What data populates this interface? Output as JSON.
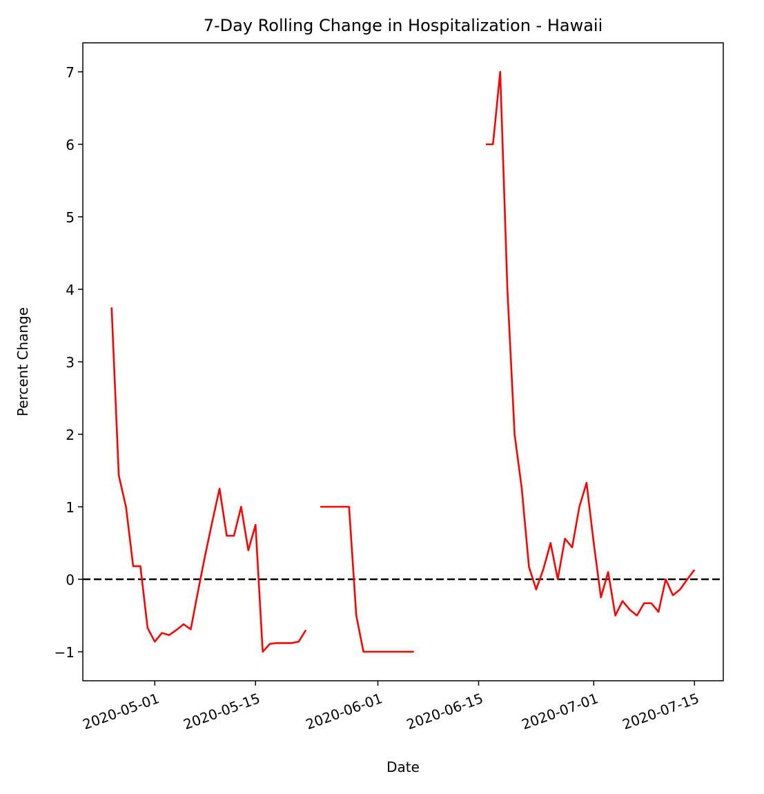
{
  "chart_data": {
    "type": "line",
    "title": "7-Day Rolling Change in Hospitalization - Hawaii",
    "xlabel": "Date",
    "ylabel": "Percent Change",
    "xlim": [
      "2020-04-21",
      "2020-07-19"
    ],
    "ylim": [
      -1.4,
      7.4
    ],
    "x_ticks": [
      "2020-05-01",
      "2020-05-15",
      "2020-06-01",
      "2020-06-15",
      "2020-07-01",
      "2020-07-15"
    ],
    "y_ticks": [
      -1,
      0,
      1,
      2,
      3,
      4,
      5,
      6,
      7
    ],
    "y_tick_labels": [
      "−1",
      "0",
      "1",
      "2",
      "3",
      "4",
      "5",
      "6",
      "7"
    ],
    "grid": false,
    "reference_line": {
      "y": 0,
      "style": "dashed",
      "color": "#000000"
    },
    "series": [
      {
        "color": "#ff0000",
        "segments": [
          [
            [
              "2020-04-25",
              3.75
            ],
            [
              "2020-04-26",
              1.43
            ],
            [
              "2020-04-27",
              1.0
            ],
            [
              "2020-04-28",
              0.18
            ],
            [
              "2020-04-29",
              0.18
            ],
            [
              "2020-04-30",
              -0.67
            ],
            [
              "2020-05-01",
              -0.86
            ],
            [
              "2020-05-02",
              -0.74
            ],
            [
              "2020-05-03",
              -0.77
            ],
            [
              "2020-05-04",
              -0.7
            ],
            [
              "2020-05-05",
              -0.62
            ],
            [
              "2020-05-06",
              -0.69
            ],
            [
              "2020-05-07",
              -0.17
            ],
            [
              "2020-05-08",
              0.33
            ],
            [
              "2020-05-09",
              0.8
            ],
            [
              "2020-05-10",
              1.25
            ],
            [
              "2020-05-11",
              0.6
            ],
            [
              "2020-05-12",
              0.6
            ],
            [
              "2020-05-13",
              1.0
            ],
            [
              "2020-05-14",
              0.4
            ],
            [
              "2020-05-15",
              0.75
            ],
            [
              "2020-05-16",
              -1.0
            ],
            [
              "2020-05-17",
              -0.89
            ],
            [
              "2020-05-18",
              -0.88
            ],
            [
              "2020-05-19",
              -0.88
            ],
            [
              "2020-05-20",
              -0.88
            ],
            [
              "2020-05-21",
              -0.86
            ],
            [
              "2020-05-22",
              -0.7
            ]
          ],
          [
            [
              "2020-05-24",
              1.0
            ],
            [
              "2020-05-25",
              1.0
            ],
            [
              "2020-05-26",
              1.0
            ],
            [
              "2020-05-27",
              1.0
            ],
            [
              "2020-05-28",
              1.0
            ],
            [
              "2020-05-29",
              -0.5
            ],
            [
              "2020-05-30",
              -1.0
            ],
            [
              "2020-05-31",
              -1.0
            ],
            [
              "2020-06-01",
              -1.0
            ],
            [
              "2020-06-02",
              -1.0
            ],
            [
              "2020-06-03",
              -1.0
            ],
            [
              "2020-06-04",
              -1.0
            ],
            [
              "2020-06-05",
              -1.0
            ],
            [
              "2020-06-06",
              -1.0
            ]
          ],
          [
            [
              "2020-06-16",
              6.0
            ],
            [
              "2020-06-17",
              6.0
            ],
            [
              "2020-06-18",
              7.0
            ],
            [
              "2020-06-19",
              4.0
            ],
            [
              "2020-06-20",
              2.0
            ],
            [
              "2020-06-21",
              1.25
            ],
            [
              "2020-06-22",
              0.17
            ],
            [
              "2020-06-23",
              -0.14
            ],
            [
              "2020-06-24",
              0.14
            ],
            [
              "2020-06-25",
              0.5
            ],
            [
              "2020-06-26",
              0.0
            ],
            [
              "2020-06-27",
              0.56
            ],
            [
              "2020-06-28",
              0.44
            ],
            [
              "2020-06-29",
              1.0
            ],
            [
              "2020-06-30",
              1.33
            ],
            [
              "2020-07-01",
              0.5
            ],
            [
              "2020-07-02",
              -0.25
            ],
            [
              "2020-07-03",
              0.1
            ],
            [
              "2020-07-04",
              -0.5
            ],
            [
              "2020-07-05",
              -0.3
            ],
            [
              "2020-07-06",
              -0.42
            ],
            [
              "2020-07-07",
              -0.5
            ],
            [
              "2020-07-08",
              -0.33
            ],
            [
              "2020-07-09",
              -0.33
            ],
            [
              "2020-07-10",
              -0.45
            ],
            [
              "2020-07-11",
              0.0
            ],
            [
              "2020-07-12",
              -0.22
            ],
            [
              "2020-07-13",
              -0.14
            ],
            [
              "2020-07-14",
              0.0
            ],
            [
              "2020-07-15",
              0.13
            ]
          ]
        ]
      }
    ]
  }
}
